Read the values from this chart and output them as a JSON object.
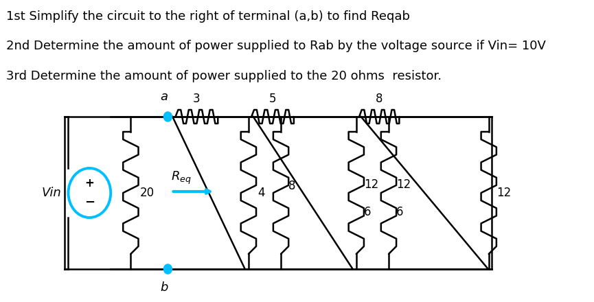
{
  "title1": "1st Simplify the circuit to the right of terminal (a,b) to find Reqab",
  "title2": "2nd Determine the amount of power supplied to Rab by the voltage source if Vin= 10V",
  "title3": "3rd Determine the amount of power supplied to the 20 ohms  resistor.",
  "bg_color": "#ffffff",
  "text_color": "#000000",
  "circuit_color": "#000000",
  "terminal_color": "#00bfff",
  "font_size_text": 13.0,
  "font_size_circuit": 12
}
